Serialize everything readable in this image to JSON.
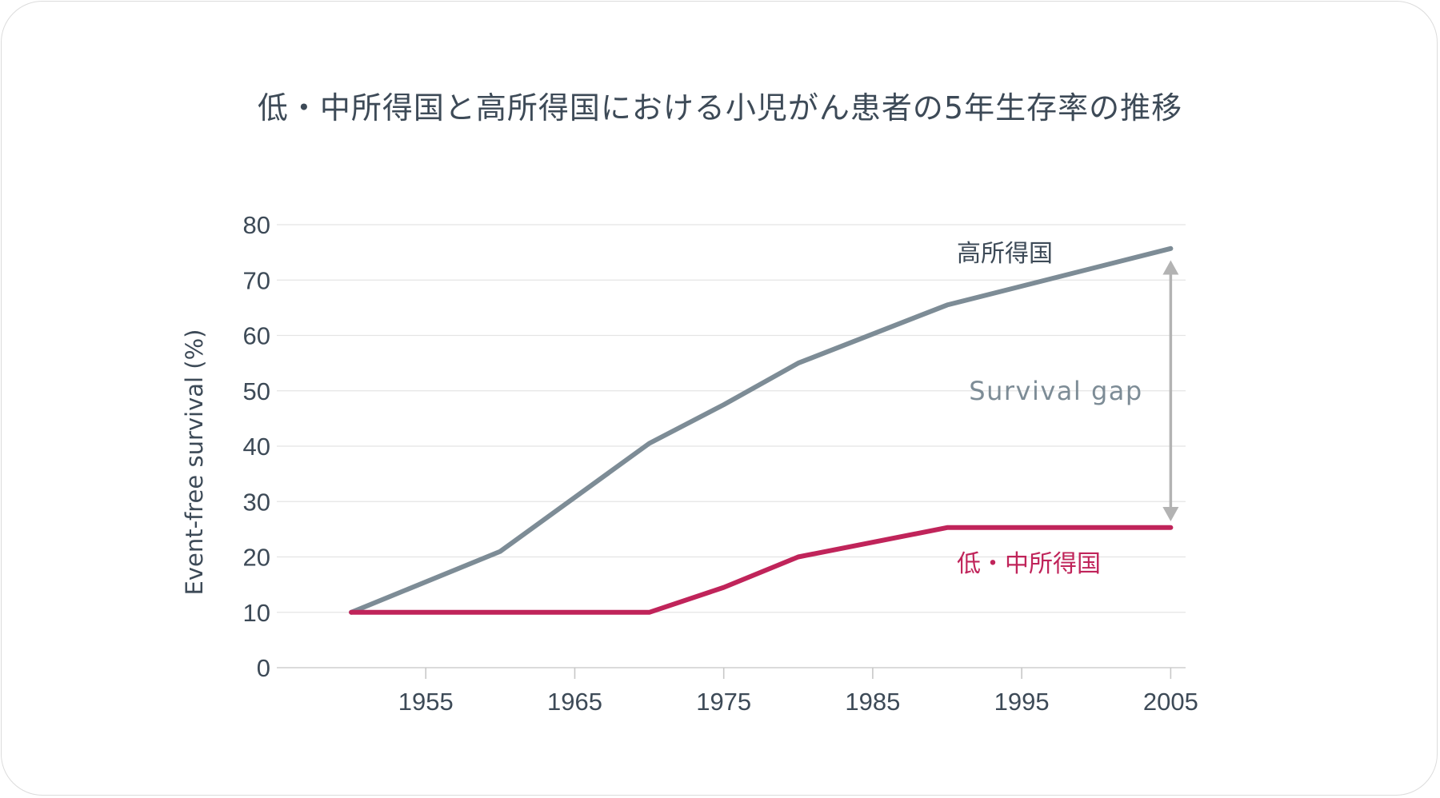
{
  "chart_data": {
    "type": "line",
    "title": "低・中所得国と高所得国における小児がん患者の5年生存率の推移",
    "ylabel": "Event-free survival (%)",
    "xlabel": "",
    "xlim": [
      1945,
      2006
    ],
    "ylim": [
      0,
      80
    ],
    "x_ticks": [
      "1955",
      "1965",
      "1975",
      "1985",
      "1995",
      "2005"
    ],
    "y_ticks": [
      "0",
      "10",
      "20",
      "30",
      "40",
      "50",
      "60",
      "70",
      "80"
    ],
    "grid": "horizontal",
    "series": [
      {
        "name": "高所得国",
        "color": "#7d8c96",
        "x": [
          1950,
          1960,
          1970,
          1975,
          1980,
          1990,
          2005
        ],
        "y": [
          10,
          21,
          40.5,
          47.5,
          55,
          65.5,
          75.7
        ]
      },
      {
        "name": "低・中所得国",
        "color": "#c0245a",
        "x": [
          1950,
          1960,
          1970,
          1975,
          1980,
          1990,
          2005
        ],
        "y": [
          10,
          10,
          10,
          14.5,
          20,
          25.3,
          25.3
        ]
      }
    ],
    "annotations": [
      {
        "text": "Survival gap",
        "color": "#7d8c96",
        "arrow_color": "#b3b3b3",
        "x": 2005,
        "y_from": 27,
        "y_to": 73
      }
    ]
  }
}
